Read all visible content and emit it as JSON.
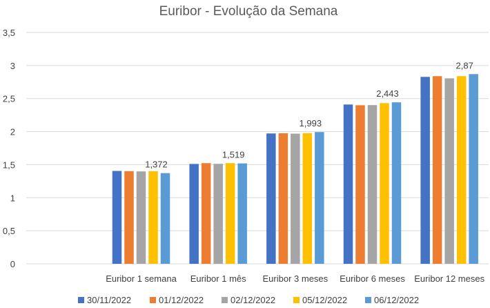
{
  "chart_data": {
    "type": "bar",
    "title": "Euribor - Evolução da Semana",
    "xlabel": "",
    "ylabel": "",
    "ylim": [
      0,
      3.5
    ],
    "yticks": [
      0,
      0.5,
      1,
      1.5,
      2,
      2.5,
      3,
      3.5
    ],
    "ytick_labels": [
      "0",
      "0,5",
      "1",
      "1,5",
      "2",
      "2,5",
      "3",
      "3,5"
    ],
    "grid": true,
    "legend_position": "bottom",
    "categories": [
      "Euribor 1 semana",
      "Euribor 1 mês",
      "Euribor 3 meses",
      "Euribor 6 meses",
      "Euribor 12 meses"
    ],
    "series": [
      {
        "name": "30/11/2022",
        "color": "#4472C4",
        "values": [
          1.405,
          1.511,
          1.972,
          2.41,
          2.828
        ]
      },
      {
        "name": "01/12/2022",
        "color": "#ED7D31",
        "values": [
          1.402,
          1.523,
          1.975,
          2.399,
          2.839
        ]
      },
      {
        "name": "02/12/2022",
        "color": "#A5A5A5",
        "values": [
          1.398,
          1.513,
          1.969,
          2.401,
          2.806
        ]
      },
      {
        "name": "05/12/2022",
        "color": "#FFC000",
        "values": [
          1.401,
          1.523,
          1.976,
          2.431,
          2.839
        ]
      },
      {
        "name": "06/12/2022",
        "color": "#5B9BD5",
        "values": [
          1.372,
          1.519,
          1.993,
          2.443,
          2.87
        ]
      }
    ],
    "data_labels": {
      "series_index": 4,
      "labels": [
        "1,372",
        "1,519",
        "1,993",
        "2,443",
        "2,87"
      ]
    }
  }
}
